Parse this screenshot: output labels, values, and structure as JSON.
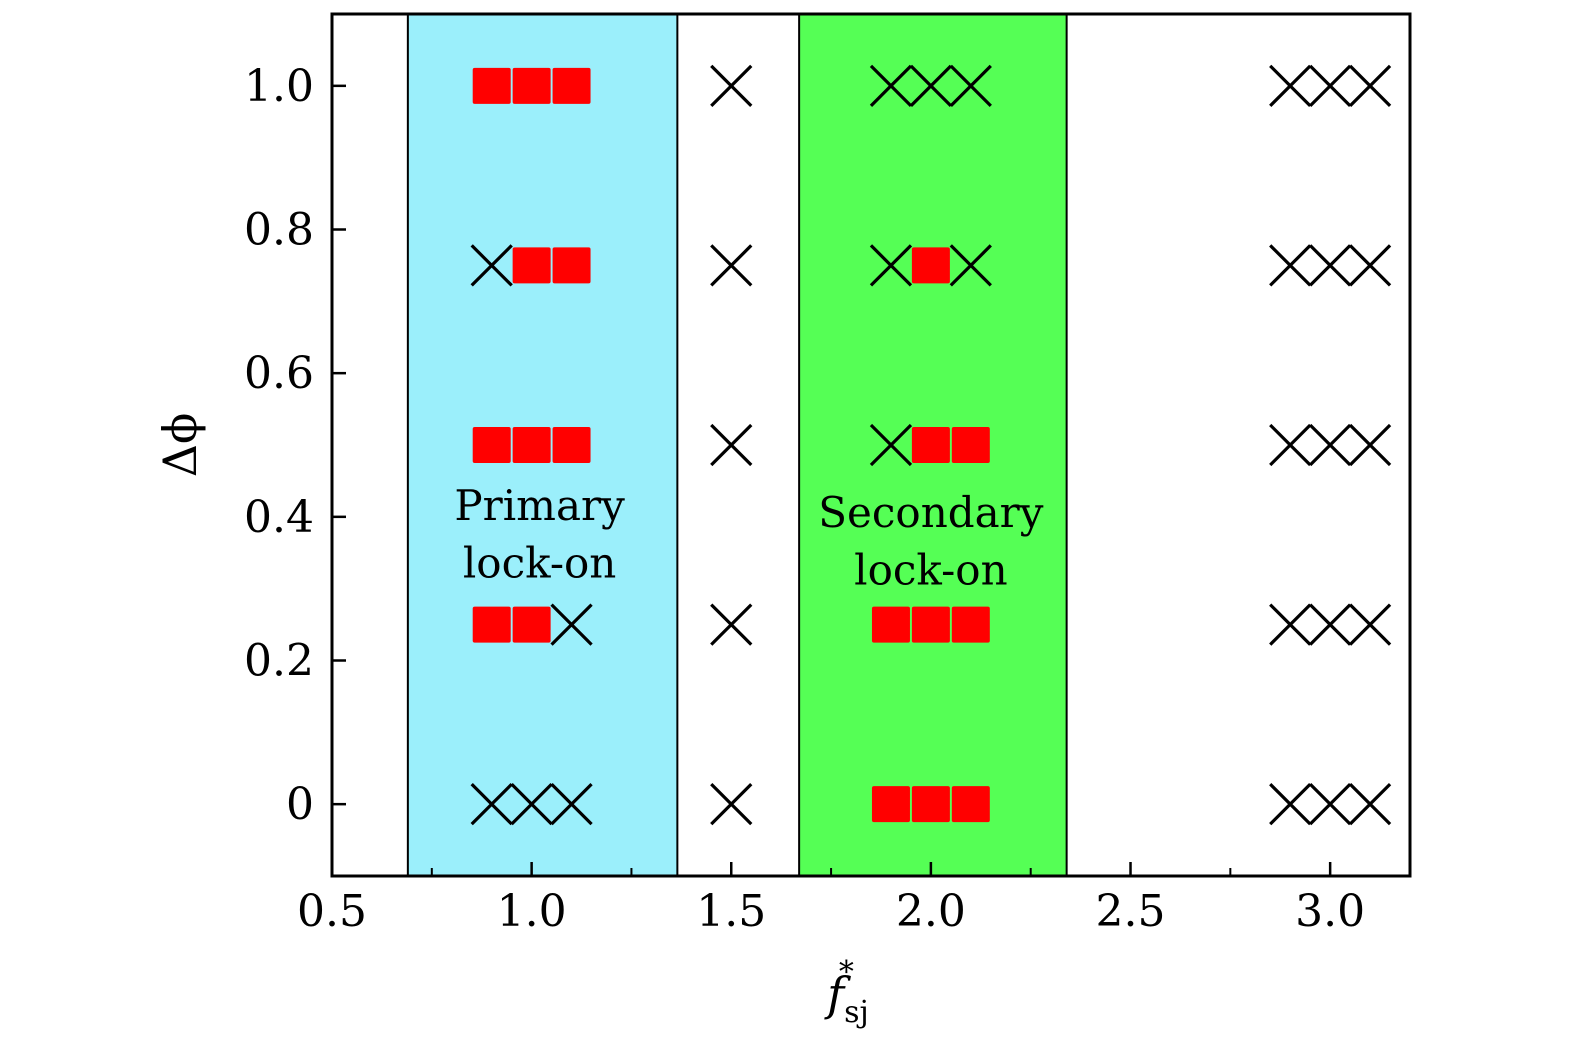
{
  "chart_data": {
    "type": "scatter",
    "xlabel": {
      "main": "f",
      "sub": "sj",
      "sup": "*"
    },
    "ylabel": "Δϕ",
    "xlim": [
      0.5,
      3.2
    ],
    "ylim": [
      -0.1,
      1.1
    ],
    "xticks": [
      {
        "v": 0.5,
        "label": "0.5"
      },
      {
        "v": 1.0,
        "label": "1.0"
      },
      {
        "v": 1.5,
        "label": "1.5"
      },
      {
        "v": 2.0,
        "label": "2.0"
      },
      {
        "v": 2.5,
        "label": "2.5"
      },
      {
        "v": 3.0,
        "label": "3.0"
      }
    ],
    "xminor": [
      0.75,
      1.25,
      1.75,
      2.25,
      2.75
    ],
    "yticks": [
      {
        "v": 0,
        "label": "0"
      },
      {
        "v": 0.2,
        "label": "0.2"
      },
      {
        "v": 0.4,
        "label": "0.4"
      },
      {
        "v": 0.6,
        "label": "0.6"
      },
      {
        "v": 0.8,
        "label": "0.8"
      },
      {
        "v": 1.0,
        "label": "1.0"
      }
    ],
    "regions": [
      {
        "x0": 0.69,
        "x1": 1.365,
        "color": "#9BEFFB",
        "label": [
          "Primary",
          "lock-on"
        ],
        "label_x": 1.02,
        "label_y": [
          0.415,
          0.335
        ]
      },
      {
        "x0": 1.67,
        "x1": 2.34,
        "color": "#55FF55",
        "label": [
          "Secondary",
          "lock-on"
        ],
        "label_x": 2.0,
        "label_y": [
          0.405,
          0.325
        ]
      }
    ],
    "marker_colors": {
      "lock": "#FF0000",
      "no_lock": "#000000"
    },
    "y_levels": [
      0,
      0.25,
      0.5,
      0.75,
      1.0
    ],
    "points": [
      {
        "x": 0.9,
        "y": 1.0,
        "state": "lock"
      },
      {
        "x": 1.0,
        "y": 1.0,
        "state": "lock"
      },
      {
        "x": 1.1,
        "y": 1.0,
        "state": "lock"
      },
      {
        "x": 0.9,
        "y": 0.75,
        "state": "no_lock"
      },
      {
        "x": 1.0,
        "y": 0.75,
        "state": "lock"
      },
      {
        "x": 1.1,
        "y": 0.75,
        "state": "lock"
      },
      {
        "x": 0.9,
        "y": 0.5,
        "state": "lock"
      },
      {
        "x": 1.0,
        "y": 0.5,
        "state": "lock"
      },
      {
        "x": 1.1,
        "y": 0.5,
        "state": "lock"
      },
      {
        "x": 0.9,
        "y": 0.25,
        "state": "lock"
      },
      {
        "x": 1.0,
        "y": 0.25,
        "state": "lock"
      },
      {
        "x": 1.1,
        "y": 0.25,
        "state": "no_lock"
      },
      {
        "x": 0.9,
        "y": 0,
        "state": "no_lock"
      },
      {
        "x": 1.0,
        "y": 0,
        "state": "no_lock"
      },
      {
        "x": 1.1,
        "y": 0,
        "state": "no_lock"
      },
      {
        "x": 1.5,
        "y": 1.0,
        "state": "no_lock"
      },
      {
        "x": 1.5,
        "y": 0.75,
        "state": "no_lock"
      },
      {
        "x": 1.5,
        "y": 0.5,
        "state": "no_lock"
      },
      {
        "x": 1.5,
        "y": 0.25,
        "state": "no_lock"
      },
      {
        "x": 1.5,
        "y": 0,
        "state": "no_lock"
      },
      {
        "x": 1.9,
        "y": 1.0,
        "state": "no_lock"
      },
      {
        "x": 2.0,
        "y": 1.0,
        "state": "no_lock"
      },
      {
        "x": 2.1,
        "y": 1.0,
        "state": "no_lock"
      },
      {
        "x": 1.9,
        "y": 0.75,
        "state": "no_lock"
      },
      {
        "x": 2.0,
        "y": 0.75,
        "state": "lock"
      },
      {
        "x": 2.1,
        "y": 0.75,
        "state": "no_lock"
      },
      {
        "x": 1.9,
        "y": 0.5,
        "state": "no_lock"
      },
      {
        "x": 2.0,
        "y": 0.5,
        "state": "lock"
      },
      {
        "x": 2.1,
        "y": 0.5,
        "state": "lock"
      },
      {
        "x": 1.9,
        "y": 0.25,
        "state": "lock"
      },
      {
        "x": 2.0,
        "y": 0.25,
        "state": "lock"
      },
      {
        "x": 2.1,
        "y": 0.25,
        "state": "lock"
      },
      {
        "x": 1.9,
        "y": 0,
        "state": "lock"
      },
      {
        "x": 2.0,
        "y": 0,
        "state": "lock"
      },
      {
        "x": 2.1,
        "y": 0,
        "state": "lock"
      },
      {
        "x": 2.9,
        "y": 1.0,
        "state": "no_lock"
      },
      {
        "x": 3.0,
        "y": 1.0,
        "state": "no_lock"
      },
      {
        "x": 3.1,
        "y": 1.0,
        "state": "no_lock"
      },
      {
        "x": 2.9,
        "y": 0.75,
        "state": "no_lock"
      },
      {
        "x": 3.0,
        "y": 0.75,
        "state": "no_lock"
      },
      {
        "x": 3.1,
        "y": 0.75,
        "state": "no_lock"
      },
      {
        "x": 2.9,
        "y": 0.5,
        "state": "no_lock"
      },
      {
        "x": 3.0,
        "y": 0.5,
        "state": "no_lock"
      },
      {
        "x": 3.1,
        "y": 0.5,
        "state": "no_lock"
      },
      {
        "x": 2.9,
        "y": 0.25,
        "state": "no_lock"
      },
      {
        "x": 3.0,
        "y": 0.25,
        "state": "no_lock"
      },
      {
        "x": 3.1,
        "y": 0.25,
        "state": "no_lock"
      },
      {
        "x": 2.9,
        "y": 0,
        "state": "no_lock"
      },
      {
        "x": 3.0,
        "y": 0,
        "state": "no_lock"
      },
      {
        "x": 3.1,
        "y": 0,
        "state": "no_lock"
      }
    ]
  }
}
